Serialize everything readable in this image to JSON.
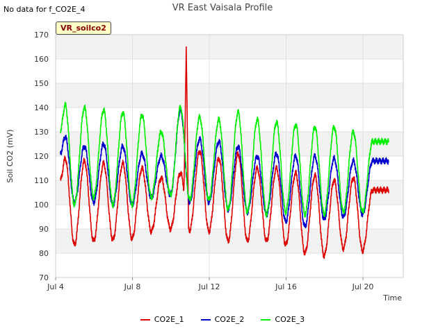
{
  "notice": "No data for f_CO2E_4",
  "badge": "VR_soilco2",
  "chart_data": {
    "type": "line",
    "title": "VR East Vaisala Profile",
    "xlabel": "Time",
    "ylabel": "Soil CO2 (mV)",
    "ylim": [
      70,
      170
    ],
    "yticks": [
      70,
      80,
      90,
      100,
      110,
      120,
      130,
      140,
      150,
      160,
      170
    ],
    "xlim_days": [
      4,
      22.1
    ],
    "xticks": [
      {
        "day": 4,
        "label": "Jul 4"
      },
      {
        "day": 8,
        "label": "Jul 8"
      },
      {
        "day": 12,
        "label": "Jul 12"
      },
      {
        "day": 16,
        "label": "Jul 16"
      },
      {
        "day": 20,
        "label": "Jul 20"
      }
    ],
    "grid": true,
    "legend_position": "bottom",
    "series": [
      {
        "name": "CO2E_1",
        "color": "#dd0000",
        "daily_minima": [
          83.5,
          85,
          85.5,
          86,
          89,
          90,
          89.5,
          89,
          85,
          85,
          85,
          83.5,
          80,
          79,
          82,
          81
        ],
        "daily_maxima": [
          119,
          118,
          117,
          117,
          115,
          111,
          113,
          122,
          119,
          121,
          115,
          115,
          113,
          112,
          110,
          111,
          106
        ],
        "spike": {
          "day": 10.8,
          "value": 165
        }
      },
      {
        "name": "CO2E_2",
        "color": "#0000cc",
        "daily_minima": [
          101,
          101,
          100,
          100,
          103,
          104,
          101,
          101,
          98,
          97,
          96,
          93,
          91,
          94,
          95,
          96
        ],
        "daily_maxima": [
          128,
          124,
          125,
          124,
          121,
          120,
          139,
          127,
          126,
          124,
          120,
          121,
          120,
          120,
          119,
          118,
          118
        ]
      },
      {
        "name": "CO2E_3",
        "color": "#00ee00",
        "daily_minima": [
          100,
          103,
          100,
          100,
          103,
          104,
          102,
          102,
          98,
          97,
          96,
          97,
          96,
          96,
          97,
          97
        ],
        "daily_maxima": [
          141,
          140,
          139,
          138,
          137,
          130,
          140,
          136,
          135,
          138,
          135,
          134,
          133,
          132,
          132,
          130,
          126
        ]
      }
    ]
  }
}
